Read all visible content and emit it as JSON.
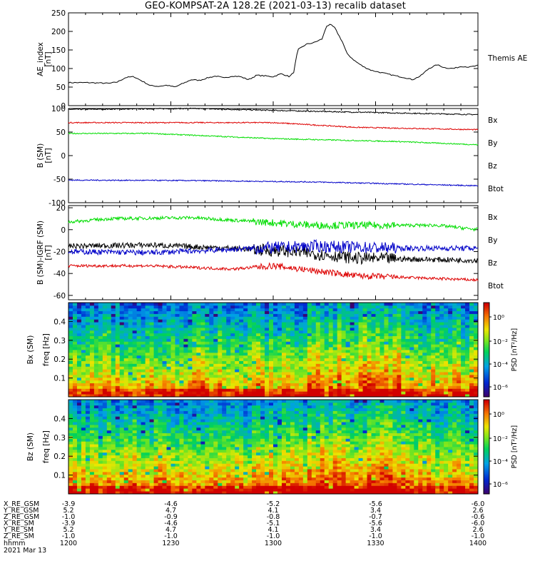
{
  "title": "GEO-KOMPSAT-2A 128.2E (2021-03-13) recalib dataset",
  "colors": {
    "black": "#000000",
    "red": "#dd0000",
    "green": "#00dd00",
    "blue": "#0000c8"
  },
  "chart_data": [
    {
      "type": "line",
      "panel": "ae",
      "ylabel": "AE_index",
      "yunit": "[nT]",
      "ylim": [
        0,
        250
      ],
      "yticks": [
        "250",
        "200",
        "150",
        "100",
        "50",
        "0"
      ],
      "right_label": "Themis AE",
      "x_time_hhmm": [
        "1200",
        "1230",
        "1300",
        "1330",
        "1400"
      ],
      "series": [
        {
          "name": "Themis AE",
          "color": "#000000",
          "points": [
            [
              0,
              62
            ],
            [
              5,
              62
            ],
            [
              10,
              60
            ],
            [
              12,
              64
            ],
            [
              14,
              76
            ],
            [
              16,
              78
            ],
            [
              18,
              66
            ],
            [
              20,
              54
            ],
            [
              22,
              52
            ],
            [
              24,
              55
            ],
            [
              26,
              50
            ],
            [
              28,
              60
            ],
            [
              30,
              70
            ],
            [
              32,
              68
            ],
            [
              34,
              75
            ],
            [
              36,
              80
            ],
            [
              38,
              74
            ],
            [
              40,
              80
            ],
            [
              42,
              78
            ],
            [
              44,
              70
            ],
            [
              46,
              82
            ],
            [
              48,
              80
            ],
            [
              50,
              78
            ],
            [
              52,
              86
            ],
            [
              54,
              78
            ],
            [
              55,
              90
            ],
            [
              56,
              150
            ],
            [
              58,
              165
            ],
            [
              60,
              170
            ],
            [
              62,
              180
            ],
            [
              63,
              215
            ],
            [
              64,
              218
            ],
            [
              65,
              210
            ],
            [
              66,
              190
            ],
            [
              67,
              170
            ],
            [
              68,
              140
            ],
            [
              70,
              120
            ],
            [
              72,
              105
            ],
            [
              74,
              95
            ],
            [
              76,
              90
            ],
            [
              78,
              85
            ],
            [
              80,
              80
            ],
            [
              82,
              76
            ],
            [
              84,
              70
            ],
            [
              86,
              80
            ],
            [
              88,
              100
            ],
            [
              90,
              110
            ],
            [
              92,
              102
            ],
            [
              94,
              100
            ],
            [
              96,
              106
            ],
            [
              98,
              104
            ],
            [
              100,
              108
            ]
          ]
        }
      ]
    },
    {
      "type": "line",
      "panel": "b_sm",
      "ylabel": "B (SM)",
      "yunit": "[nT]",
      "ylim": [
        -100,
        100
      ],
      "yticks": [
        "100",
        "50",
        "0",
        "-50",
        "-100"
      ],
      "series": [
        {
          "name": "Btot",
          "color": "#000000",
          "noise": 1.2,
          "points": [
            [
              0,
              98
            ],
            [
              30,
              100
            ],
            [
              60,
              94
            ],
            [
              100,
              87
            ]
          ]
        },
        {
          "name": "Bz",
          "color": "#dd0000",
          "noise": 1.2,
          "points": [
            [
              0,
              70
            ],
            [
              20,
              70
            ],
            [
              50,
              70
            ],
            [
              70,
              60
            ],
            [
              100,
              55
            ]
          ]
        },
        {
          "name": "By",
          "color": "#00dd00",
          "noise": 1.2,
          "points": [
            [
              0,
              47
            ],
            [
              20,
              47
            ],
            [
              50,
              36
            ],
            [
              80,
              30
            ],
            [
              100,
              23
            ]
          ]
        },
        {
          "name": "Bx",
          "color": "#0000c8",
          "noise": 1.2,
          "points": [
            [
              0,
              -52
            ],
            [
              30,
              -53
            ],
            [
              60,
              -56
            ],
            [
              100,
              -64
            ]
          ]
        }
      ],
      "legend": [
        {
          "name": "Bx",
          "color": "#0000c8"
        },
        {
          "name": "By",
          "color": "#00dd00"
        },
        {
          "name": "Bz",
          "color": "#dd0000"
        },
        {
          "name": "Btot",
          "color": "#000000"
        }
      ]
    },
    {
      "type": "line",
      "panel": "b_minus_igrf",
      "ylabel": "B (SM)-IGRF (SM)",
      "yunit": "[nT]",
      "ylim": [
        -64,
        22
      ],
      "yticks": [
        "20",
        "0",
        "-20",
        "-40",
        "-60"
      ],
      "series": [
        {
          "name": "By",
          "color": "#00dd00",
          "noise": 1.5,
          "points": [
            [
              0,
              7
            ],
            [
              10,
              10
            ],
            [
              30,
              11
            ],
            [
              60,
              4
            ],
            [
              90,
              4
            ],
            [
              100,
              0
            ]
          ]
        },
        {
          "name": "Btot",
          "color": "#000000",
          "noise": 2.5,
          "points": [
            [
              0,
              -15
            ],
            [
              20,
              -14
            ],
            [
              40,
              -17
            ],
            [
              55,
              -20
            ],
            [
              70,
              -26
            ],
            [
              100,
              -28
            ]
          ]
        },
        {
          "name": "Bx",
          "color": "#0000c8",
          "noise": 2.5,
          "points": [
            [
              0,
              -20
            ],
            [
              20,
              -21
            ],
            [
              40,
              -18
            ],
            [
              60,
              -15
            ],
            [
              80,
              -17
            ],
            [
              100,
              -17
            ]
          ]
        },
        {
          "name": "Bz",
          "color": "#dd0000",
          "noise": 1.3,
          "points": [
            [
              0,
              -33
            ],
            [
              20,
              -33
            ],
            [
              40,
              -36
            ],
            [
              50,
              -33
            ],
            [
              70,
              -42
            ],
            [
              100,
              -46
            ]
          ]
        }
      ],
      "legend": [
        {
          "name": "Bx",
          "color": "#0000c8"
        },
        {
          "name": "By",
          "color": "#00dd00"
        },
        {
          "name": "Bz",
          "color": "#dd0000"
        },
        {
          "name": "Btot",
          "color": "#000000"
        }
      ]
    },
    {
      "type": "heatmap",
      "panel": "spec_bx",
      "ylabel": "Bx (SM)",
      "yunit": "freq [Hz]",
      "ylim": [
        0,
        0.5
      ],
      "yticks": [
        "0.4",
        "0.3",
        "0.2",
        "0.1"
      ],
      "colorbar_label": "PSD [nT²/Hz]",
      "colorbar_ticks": [
        "10⁰",
        "10⁻²",
        "10⁻⁴",
        "10⁻⁶"
      ]
    },
    {
      "type": "heatmap",
      "panel": "spec_bz",
      "ylabel": "Bz (SM)",
      "yunit": "freq [Hz]",
      "ylim": [
        0,
        0.5
      ],
      "yticks": [
        "0.4",
        "0.3",
        "0.2",
        "0.1"
      ],
      "colorbar_label": "PSD [nT²/Hz]",
      "colorbar_ticks": [
        "10⁰",
        "10⁻²",
        "10⁻⁴",
        "10⁻⁶"
      ]
    }
  ],
  "ephemeris": {
    "labels": [
      "X_RE_GSM",
      "Y_RE_GSM",
      "Z_RE_GSM",
      "X_RE_SM",
      "Y_RE_SM",
      "Z_RE_SM",
      "hhmm"
    ],
    "columns": [
      [
        "-3.9",
        "5.2",
        "-1.0",
        "-3.9",
        "5.2",
        "-1.0",
        "1200"
      ],
      [
        "-4.6",
        "4.7",
        "-0.9",
        "-4.6",
        "4.7",
        "-1.0",
        "1230"
      ],
      [
        "-5.2",
        "4.1",
        "-0.8",
        "-5.1",
        "4.1",
        "-1.0",
        "1300"
      ],
      [
        "-5.6",
        "3.4",
        "-0.7",
        "-5.6",
        "3.4",
        "-1.0",
        "1330"
      ],
      [
        "-6.0",
        "2.6",
        "-0.6",
        "-6.0",
        "2.6",
        "-1.0",
        "1400"
      ]
    ],
    "date": "2021 Mar 13"
  }
}
